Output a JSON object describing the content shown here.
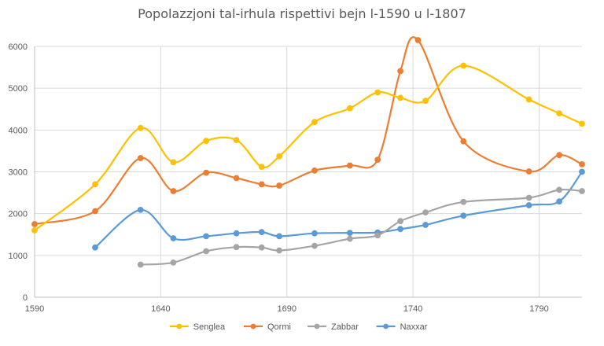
{
  "chart_data": {
    "type": "line",
    "title": "Popolazzjoni tal-irhula rispettivi bejn l-1590 u l-1807",
    "xlabel": "",
    "ylabel": "",
    "xlim": [
      1590,
      1807
    ],
    "ylim": [
      0,
      6000
    ],
    "x_ticks": [
      1590,
      1640,
      1690,
      1740,
      1790
    ],
    "y_ticks": [
      0,
      1000,
      2000,
      3000,
      4000,
      5000,
      6000
    ],
    "grid": true,
    "legend_position": "bottom",
    "series": [
      {
        "name": "Senglea",
        "color": "#FFC000",
        "points": [
          [
            1590,
            1600
          ],
          [
            1614,
            2700
          ],
          [
            1632,
            4050
          ],
          [
            1645,
            3230
          ],
          [
            1658,
            3740
          ],
          [
            1670,
            3760
          ],
          [
            1680,
            3120
          ],
          [
            1687,
            3370
          ],
          [
            1701,
            4190
          ],
          [
            1715,
            4520
          ],
          [
            1726,
            4900
          ],
          [
            1735,
            4770
          ],
          [
            1745,
            4700
          ],
          [
            1760,
            5540
          ],
          [
            1786,
            4730
          ],
          [
            1798,
            4400
          ],
          [
            1807,
            4150
          ]
        ]
      },
      {
        "name": "Qormi",
        "color": "#ED7D31",
        "points": [
          [
            1590,
            1750
          ],
          [
            1614,
            2060
          ],
          [
            1632,
            3330
          ],
          [
            1645,
            2540
          ],
          [
            1658,
            2980
          ],
          [
            1670,
            2850
          ],
          [
            1680,
            2700
          ],
          [
            1687,
            2670
          ],
          [
            1701,
            3030
          ],
          [
            1715,
            3150
          ],
          [
            1726,
            3290
          ],
          [
            1735,
            5410
          ],
          [
            1742,
            6150
          ],
          [
            1760,
            3730
          ],
          [
            1786,
            3010
          ],
          [
            1798,
            3400
          ],
          [
            1807,
            3180
          ]
        ]
      },
      {
        "name": "Zabbar",
        "color": "#A5A5A5",
        "points": [
          [
            1632,
            780
          ],
          [
            1645,
            830
          ],
          [
            1658,
            1100
          ],
          [
            1670,
            1200
          ],
          [
            1680,
            1190
          ],
          [
            1687,
            1120
          ],
          [
            1701,
            1230
          ],
          [
            1715,
            1400
          ],
          [
            1726,
            1480
          ],
          [
            1735,
            1820
          ],
          [
            1745,
            2030
          ],
          [
            1760,
            2280
          ],
          [
            1786,
            2380
          ],
          [
            1798,
            2570
          ],
          [
            1807,
            2540
          ]
        ]
      },
      {
        "name": "Naxxar",
        "color": "#5B9BD5",
        "points": [
          [
            1614,
            1190
          ],
          [
            1632,
            2090
          ],
          [
            1645,
            1410
          ],
          [
            1658,
            1460
          ],
          [
            1670,
            1530
          ],
          [
            1680,
            1560
          ],
          [
            1687,
            1460
          ],
          [
            1701,
            1530
          ],
          [
            1715,
            1540
          ],
          [
            1726,
            1550
          ],
          [
            1735,
            1630
          ],
          [
            1745,
            1730
          ],
          [
            1760,
            1950
          ],
          [
            1786,
            2200
          ],
          [
            1798,
            2290
          ],
          [
            1807,
            3000
          ]
        ]
      }
    ]
  }
}
